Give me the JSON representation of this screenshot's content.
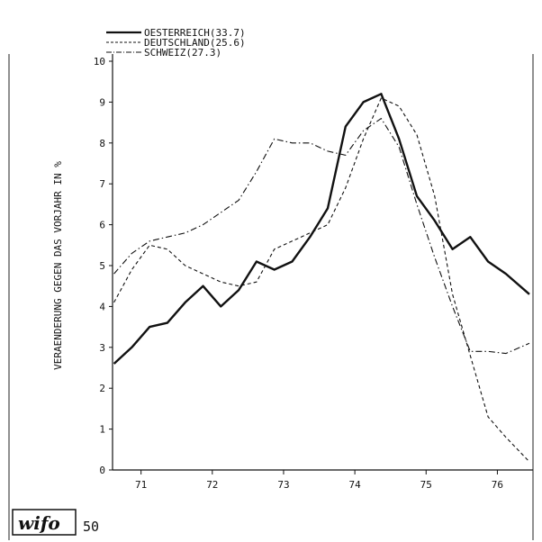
{
  "chart_data": {
    "type": "line",
    "title": "",
    "xlabel": "",
    "ylabel": "VERAENDERUNG GEGEN DAS VORJAHR IN %",
    "ylim": [
      0,
      10
    ],
    "xlim": [
      70.6,
      76.5
    ],
    "y_ticks": [
      "0",
      "1",
      "2",
      "3",
      "4",
      "5",
      "6",
      "7",
      "8",
      "9",
      "10"
    ],
    "x_ticks": [
      "71",
      "72",
      "73",
      "74",
      "75",
      "76"
    ],
    "grid": false,
    "legend_position": "top-left",
    "series": [
      {
        "name": "OESTERREICH(33.7)",
        "style": "solid",
        "x": [
          70.62,
          70.87,
          71.12,
          71.37,
          71.62,
          71.87,
          72.12,
          72.37,
          72.62,
          72.87,
          73.12,
          73.37,
          73.62,
          73.87,
          74.12,
          74.37,
          74.62,
          74.87,
          75.12,
          75.37,
          75.62,
          75.87,
          76.12,
          76.45
        ],
        "values": [
          2.6,
          3.0,
          3.5,
          3.6,
          4.1,
          4.5,
          4.0,
          4.4,
          5.1,
          4.9,
          5.1,
          5.7,
          6.4,
          8.4,
          9.0,
          9.2,
          8.1,
          6.7,
          6.1,
          5.4,
          5.7,
          5.1,
          4.8,
          4.3
        ]
      },
      {
        "name": "DEUTSCHLAND(25.6)",
        "style": "dashed",
        "x": [
          70.62,
          70.87,
          71.12,
          71.37,
          71.62,
          71.87,
          72.12,
          72.37,
          72.62,
          72.87,
          73.12,
          73.37,
          73.62,
          73.87,
          74.12,
          74.37,
          74.62,
          74.87,
          75.12,
          75.37,
          75.62,
          75.87,
          76.12,
          76.45
        ],
        "values": [
          4.1,
          4.9,
          5.5,
          5.4,
          5.0,
          4.8,
          4.6,
          4.5,
          4.6,
          5.4,
          5.6,
          5.8,
          6.0,
          6.9,
          8.1,
          9.1,
          8.9,
          8.2,
          6.7,
          4.3,
          2.8,
          1.3,
          0.8,
          0.2
        ]
      },
      {
        "name": "SCHWEIZ(27.3)",
        "style": "dashdot",
        "x": [
          70.62,
          70.87,
          71.12,
          71.37,
          71.62,
          71.87,
          72.12,
          72.37,
          72.62,
          72.87,
          73.12,
          73.37,
          73.62,
          73.87,
          74.12,
          74.37,
          74.62,
          74.87,
          75.12,
          75.37,
          75.62,
          75.87,
          76.12,
          76.45
        ],
        "values": [
          4.8,
          5.3,
          5.6,
          5.7,
          5.8,
          6.0,
          6.3,
          6.6,
          7.3,
          8.1,
          8.0,
          8.0,
          7.8,
          7.7,
          8.3,
          8.6,
          7.9,
          6.5,
          5.2,
          4.0,
          2.9,
          2.9,
          2.85,
          3.1
        ]
      }
    ]
  },
  "footer": {
    "logo_text": "wifo",
    "page_number": "50"
  }
}
